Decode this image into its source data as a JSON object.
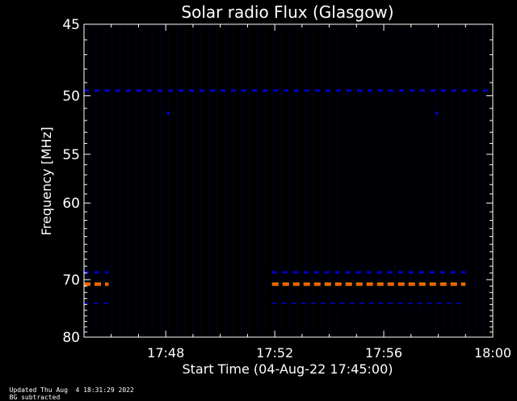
{
  "chart_data": {
    "type": "heatmap",
    "title": "Solar radio Flux (Glasgow)",
    "xlabel": "Start Time (04-Aug-22 17:45:00)",
    "ylabel": "Frequency [MHz]",
    "x_ticks": [
      "17:48",
      "17:52",
      "17:56",
      "18:00"
    ],
    "x_tick_minutes": [
      3,
      7,
      11,
      15
    ],
    "xlim_minutes": [
      0,
      15
    ],
    "y_ticks": [
      45,
      50,
      55,
      60,
      70,
      80
    ],
    "ylim": [
      45,
      80
    ],
    "y_scale": "reciprocal",
    "background_subtracted": true,
    "colors": {
      "background": "#000000",
      "low": "#0000cc",
      "high": "#ff8c00",
      "axis": "#ffffff"
    },
    "bands": [
      {
        "freq": 49.6,
        "start_min": 0.0,
        "end_min": 15.0,
        "level": "low"
      },
      {
        "freq": 68.9,
        "start_min": 0.0,
        "end_min": 0.9,
        "level": "low"
      },
      {
        "freq": 70.7,
        "start_min": 0.0,
        "end_min": 0.9,
        "level": "high"
      },
      {
        "freq": 73.8,
        "start_min": 0.0,
        "end_min": 0.9,
        "level": "low"
      },
      {
        "freq": 68.9,
        "start_min": 6.9,
        "end_min": 14.0,
        "level": "low"
      },
      {
        "freq": 70.7,
        "start_min": 6.9,
        "end_min": 14.0,
        "level": "high"
      },
      {
        "freq": 73.8,
        "start_min": 6.9,
        "end_min": 14.0,
        "level": "low"
      }
    ],
    "dots": [
      {
        "minute": 3.1,
        "freq": 51.4
      },
      {
        "minute": 12.95,
        "freq": 51.4
      }
    ]
  },
  "footer": {
    "updated": "Updated Thu Aug  4 18:31:29 2022",
    "note": "BG subtracted"
  }
}
